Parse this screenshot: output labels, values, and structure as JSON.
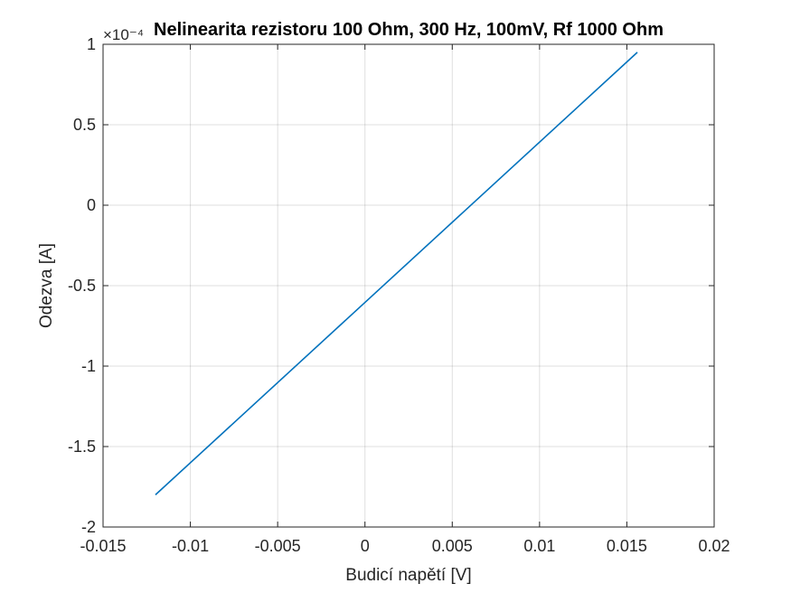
{
  "chart_data": {
    "type": "line",
    "title": "Nelinearita rezistoru 100 Ohm, 300 Hz, 100mV, Rf 1000 Ohm",
    "xlabel": "Budicí napětí [V]",
    "ylabel": "Odezva [A]",
    "y_exponent": "×10⁻⁴",
    "xlim": [
      -0.015,
      0.02
    ],
    "ylim": [
      -2,
      1
    ],
    "x_ticks": [
      -0.015,
      -0.01,
      -0.005,
      0,
      0.005,
      0.01,
      0.015,
      0.02
    ],
    "x_tick_labels": [
      "-0.015",
      "-0.01",
      "-0.005",
      "0",
      "0.005",
      "0.01",
      "0.015",
      "0.02"
    ],
    "y_ticks": [
      -2,
      -1.5,
      -1,
      -0.5,
      0,
      0.5,
      1
    ],
    "y_tick_labels": [
      "-2",
      "-1.5",
      "-1",
      "-0.5",
      "0",
      "0.5",
      "1"
    ],
    "grid": true,
    "series": [
      {
        "color": "#0072BD",
        "x": [
          -0.012,
          0.0156
        ],
        "y": [
          -1.8,
          0.95
        ]
      }
    ]
  }
}
